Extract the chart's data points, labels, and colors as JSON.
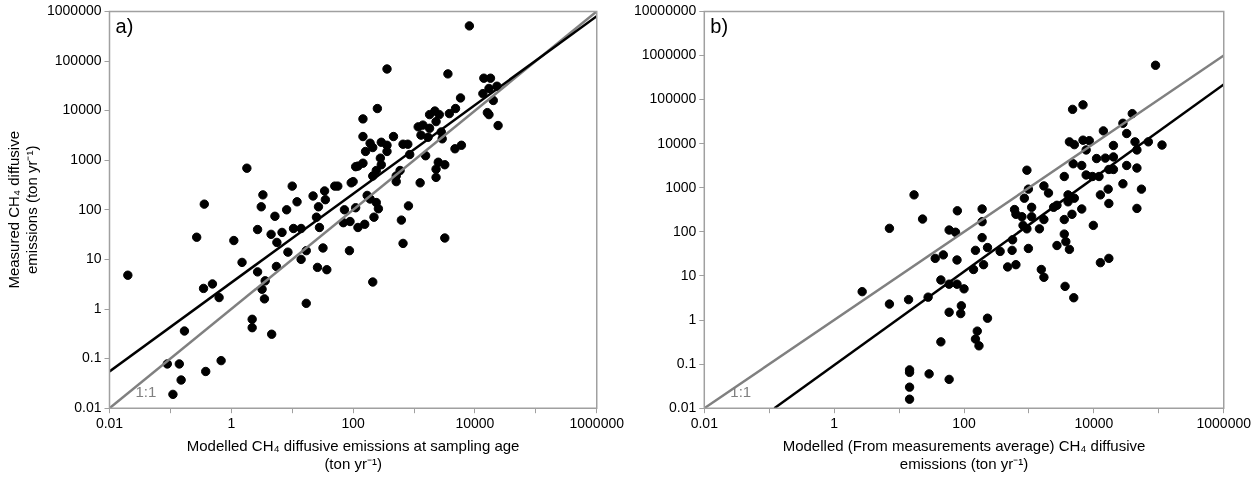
{
  "chart_data": [
    {
      "type": "scatter",
      "xlabel": "Modelled CH₄ diffusive emissions at sampling age (ton yr⁻¹)",
      "ylabel": "Measured CH₄ diffusive emissions (ton yr⁻¹)",
      "annotations": [
        "a)"
      ],
      "log": "xy",
      "xlim": [
        0.01,
        1000000
      ],
      "ylim": [
        0.01,
        1000000
      ],
      "xticks": [
        0.01,
        {
          "value": 0.1,
          "label": null
        },
        1,
        {
          "value": 10,
          "label": null
        },
        100,
        {
          "value": 1000,
          "label": null
        },
        10000,
        {
          "value": 100000,
          "label": null
        },
        1000000
      ],
      "yticks": [
        0.01,
        0.1,
        1,
        10,
        100,
        1000,
        10000,
        100000,
        1000000
      ],
      "series": [
        {
          "marker": "circle",
          "color": "#000000",
          "x": [
            0.02,
            1.8,
            0.36,
            0.27,
            1.1,
            1.5,
            2.7,
            0.35,
            0.49,
            0.63,
            0.17,
            0.089,
            0.14,
            0.15,
            0.11,
            0.38,
            0.68,
            2.2,
            2.2,
            4.6,
            3.2,
            3.5,
            3.6,
            5.5,
            3.3,
            3.1,
            2.7,
            5.2,
            4.5,
            6.8,
            5.6,
            8.1,
            10,
            12,
            10.5,
            8.5,
            14,
            14,
            17,
            17,
            26,
            37,
            32,
            28,
            25,
            27,
            22,
            34,
            35,
            50,
            56,
            72,
            69,
            87,
            93,
            110,
            8100,
            360,
            3600,
            250,
            145,
            145,
            190,
            210,
            160,
            290,
            360,
            360,
            460,
            120,
            145,
            280,
            290,
            240,
            210,
            100,
            110,
            170,
            190,
            240,
            260,
            220,
            155,
            120,
            89,
            210,
            620,
            810,
            660,
            510,
            510,
            590,
            660,
            790,
            850,
            1260,
            1550,
            1170,
            1400,
            1300,
            1700,
            1800,
            1800,
            2200,
            2600,
            2300,
            2800,
            2900,
            2500,
            3200,
            2300,
            2300,
            3200,
            3800,
            4800,
            5800,
            4700,
            6000,
            14000,
            18000,
            17000,
            23000,
            13500,
            20000,
            16000,
            17000,
            24000
          ],
          "values": [
            4.8,
            690,
            130,
            28,
            24,
            8.7,
            5.6,
            2.6,
            3.2,
            1.7,
            0.36,
            0.078,
            0.078,
            0.037,
            0.019,
            0.055,
            0.091,
            0.62,
            0.42,
            0.31,
            2.5,
            1.6,
            3.7,
            7.2,
            200,
            115,
            40,
            74,
            32,
            35,
            22,
            100,
            300,
            145,
            42,
            14,
            42,
            10,
            15,
            1.3,
            6.9,
            6.2,
            17,
            44,
            71,
            115,
            190,
            240,
            160,
            300,
            300,
            100,
            55,
            15,
            350,
            740,
            510000,
            69000,
            55000,
            11000,
            6800,
            3000,
            2200,
            1800,
            1500,
            2300,
            2000,
            1500,
            3000,
            760,
            870,
            1100,
            810,
            620,
            480,
            370,
            110,
            195,
            165,
            140,
            105,
            71,
            51,
            44,
            58,
            3.5,
            62,
            120,
            21,
            370,
            480,
            620,
            2100,
            2100,
            1300,
            350,
            1230,
            4700,
            5100,
            3200,
            2900,
            4400,
            8300,
            9800,
            8300,
            6000,
            3700,
            2700,
            910,
            810,
            660,
            450,
            27,
            8700,
            11000,
            18000,
            1700,
            2000,
            45000,
            45000,
            28000,
            31000,
            22000,
            16000,
            9100,
            8300,
            5000
          ]
        },
        {
          "type": "line",
          "marker": "none",
          "color": "#000000",
          "x": [
            0.01,
            1000000
          ],
          "values": [
            0.055,
            800000
          ]
        },
        {
          "type": "line",
          "marker": "none",
          "name": "1:1",
          "color": "#808080",
          "x": [
            0.01,
            1000000
          ],
          "values": [
            0.01,
            1000000
          ]
        }
      ]
    },
    {
      "type": "scatter",
      "xlabel": "Modelled (From measurements average) CH₄ diffusive emissions (ton yr⁻¹)",
      "annotations": [
        "b)"
      ],
      "log": "xy",
      "xlim": [
        0.01,
        1000000
      ],
      "ylim": [
        0.01,
        10000000
      ],
      "xticks": [
        0.01,
        {
          "value": 0.1,
          "label": null
        },
        1,
        {
          "value": 10,
          "label": null
        },
        100,
        {
          "value": 1000,
          "label": null
        },
        10000,
        {
          "value": 100000,
          "label": null
        },
        1000000
      ],
      "yticks": [
        0.01,
        0.1,
        1,
        10,
        100,
        1000,
        10000,
        100000,
        1000000,
        10000000
      ],
      "series": [
        {
          "marker": "circle",
          "color": "#000000",
          "x": [
            2.7,
            7.1,
            17,
            23,
            79,
            59,
            74,
            36,
            48,
            78,
            44,
            59,
            78,
            100,
            7.1,
            14,
            28,
            91,
            59,
            89,
            44,
            14.5,
            14.5,
            29,
            59,
            14.5,
            14.5,
            89000,
            4700,
            6800,
            14000,
            28000,
            39000,
            32000,
            4200,
            5000,
            6800,
            8500,
            7600,
            20000,
            43000,
            69000,
            112000,
            46000,
            11000,
            15000,
            20000,
            4800,
            6500,
            7600,
            9500,
            12000,
            17000,
            20000,
            32000,
            46000,
            3500,
            930,
            980,
            1700,
            2000,
            850,
            600,
            630,
            1100,
            1100,
            780,
            810,
            930,
            1450,
            1700,
            2400,
            2700,
            3500,
            4000,
            4000,
            5000,
            6500,
            4600,
            3500,
            3700,
            2700,
            4200,
            9800,
            12600,
            17000,
            16600,
            28000,
            54000,
            46000,
            12600,
            17000,
            3600,
            4900,
            1550,
            1700,
            560,
            550,
            630,
            470,
            980,
            360,
            230,
            190,
            190,
            190,
            150,
            200,
            140,
            230,
            160,
            150,
            170
          ],
          "values": [
            4.4,
            120,
            690,
            195,
            300,
            110,
            98,
            25,
            30,
            23,
            8.1,
            6.5,
            6.5,
            5.1,
            2.3,
            2.9,
            3.3,
            2.1,
            1.5,
            1.4,
            0.32,
            0.074,
            0.065,
            0.06,
            0.045,
            0.03,
            0.016,
            600000,
            60000,
            76000,
            19500,
            29000,
            48000,
            17000,
            11000,
            9500,
            12000,
            11700,
            7200,
            9100,
            11000,
            11000,
            9300,
            7200,
            4600,
            4700,
            5000,
            3500,
            3200,
            1950,
            1800,
            1800,
            2600,
            2600,
            3200,
            2800,
            1800,
            2500,
            930,
            1100,
            760,
            580,
            320,
            250,
            360,
            220,
            220,
            140,
            117,
            117,
            190,
            360,
            400,
            190,
            690,
            480,
            580,
            330,
            250,
            89,
            60,
            49,
            40,
            140,
            690,
            440,
            930,
            1230,
            930,
            340,
            20,
            25,
            5.8,
            3.2,
            14,
            9.3,
            66,
            38,
            18,
            16,
            42,
            36,
            44,
            74,
            170,
            330,
            38,
            18,
            14,
            1.1,
            0.56,
            0.37,
            0.26
          ]
        },
        {
          "type": "line",
          "marker": "none",
          "color": "#000000",
          "x": [
            0.12,
            1000000
          ],
          "values": [
            0.01,
            220000
          ]
        },
        {
          "type": "line",
          "marker": "none",
          "name": "1:1",
          "color": "#808080",
          "x": [
            0.01,
            1000000
          ],
          "values": [
            0.01,
            1000000
          ]
        }
      ]
    }
  ]
}
